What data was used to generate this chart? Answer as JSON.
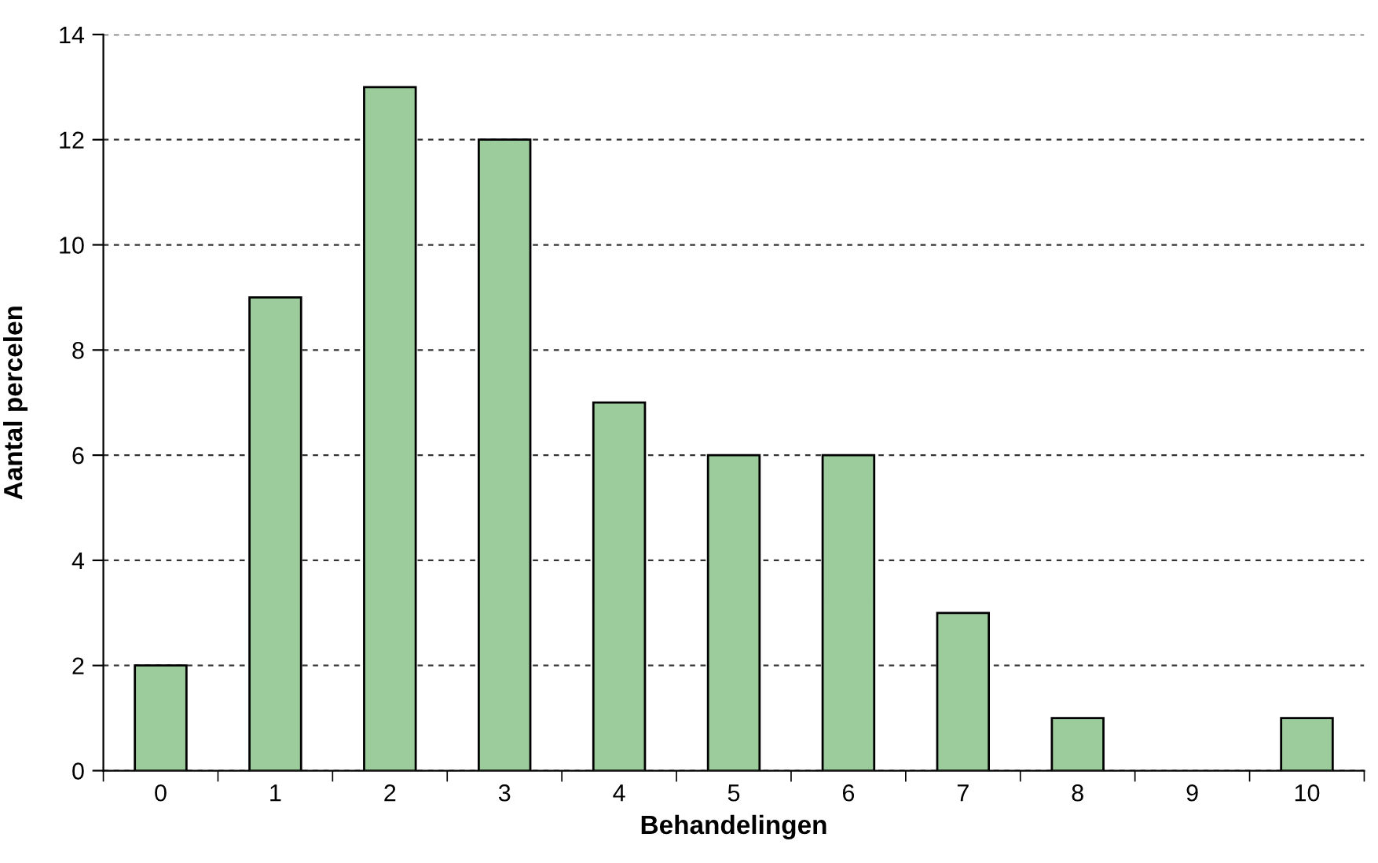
{
  "chart_data": {
    "type": "bar",
    "xlabel": "Behandelingen",
    "ylabel": "Aantal percelen",
    "categories": [
      "0",
      "1",
      "2",
      "3",
      "4",
      "5",
      "6",
      "7",
      "8",
      "9",
      "10"
    ],
    "values": [
      2,
      9,
      13,
      12,
      7,
      6,
      6,
      3,
      1,
      0,
      1
    ],
    "color": "#9ccb9c",
    "ylim": [
      0,
      14
    ],
    "yticks": [
      0,
      2,
      4,
      6,
      8,
      10,
      12,
      14
    ],
    "grid": "y",
    "line_style": "dashed"
  }
}
